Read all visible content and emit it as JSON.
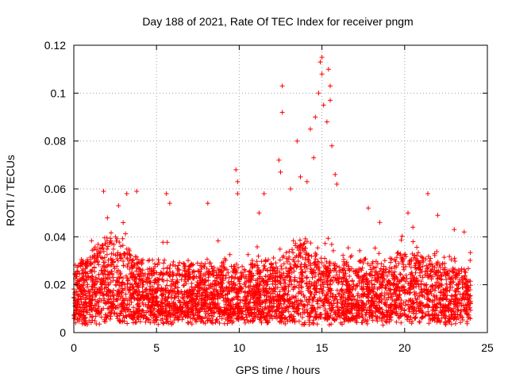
{
  "chart_data": {
    "type": "scatter",
    "title": "Day 188 of 2021, Rate Of TEC Index for receiver pngm",
    "xlabel": "GPS time / hours",
    "ylabel": "ROTI / TECUs",
    "xlim": [
      0,
      25
    ],
    "ylim": [
      0,
      0.12
    ],
    "xticks": [
      0,
      5,
      10,
      15,
      20,
      25
    ],
    "xtick_labels": [
      "0",
      "5",
      "10",
      "15",
      "20",
      "25"
    ],
    "yticks": [
      0,
      0.02,
      0.04,
      0.06,
      0.08,
      0.1,
      0.12
    ],
    "ytick_labels": [
      "0",
      "0.02",
      "0.04",
      "0.06",
      "0.08",
      "0.1",
      "0.12"
    ],
    "grid": true,
    "marker": "+",
    "color": "#ff0000",
    "series": [
      {
        "name": "ROTI",
        "summary": "Dense band of points 0.005-0.045 TECU across 0-24 h, spikes up to ~0.115 near 15 h",
        "points": [
          [
            1.8,
            0.059
          ],
          [
            2.7,
            0.053
          ],
          [
            3.2,
            0.058
          ],
          [
            3.8,
            0.059
          ],
          [
            5.6,
            0.058
          ],
          [
            5.8,
            0.054
          ],
          [
            8.1,
            0.054
          ],
          [
            9.8,
            0.068
          ],
          [
            9.9,
            0.063
          ],
          [
            9.9,
            0.058
          ],
          [
            11.2,
            0.05
          ],
          [
            11.5,
            0.058
          ],
          [
            12.4,
            0.072
          ],
          [
            12.5,
            0.067
          ],
          [
            12.6,
            0.103
          ],
          [
            12.6,
            0.092
          ],
          [
            13.1,
            0.06
          ],
          [
            13.5,
            0.08
          ],
          [
            13.7,
            0.065
          ],
          [
            14.1,
            0.063
          ],
          [
            14.3,
            0.085
          ],
          [
            14.5,
            0.073
          ],
          [
            14.6,
            0.09
          ],
          [
            14.8,
            0.1
          ],
          [
            14.9,
            0.113
          ],
          [
            15.0,
            0.115
          ],
          [
            15.0,
            0.108
          ],
          [
            15.1,
            0.095
          ],
          [
            15.3,
            0.088
          ],
          [
            15.4,
            0.11
          ],
          [
            15.5,
            0.103
          ],
          [
            15.5,
            0.097
          ],
          [
            15.6,
            0.078
          ],
          [
            15.8,
            0.066
          ],
          [
            15.9,
            0.062
          ],
          [
            17.8,
            0.052
          ],
          [
            18.5,
            0.046
          ],
          [
            20.2,
            0.05
          ],
          [
            20.5,
            0.044
          ],
          [
            21.4,
            0.058
          ],
          [
            22.0,
            0.049
          ],
          [
            23.0,
            0.043
          ],
          [
            23.6,
            0.042
          ]
        ]
      }
    ]
  }
}
